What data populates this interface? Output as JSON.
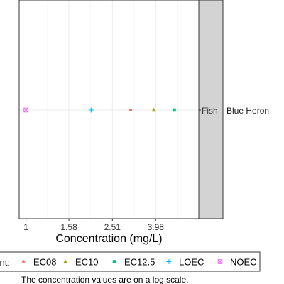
{
  "chart_data": {
    "type": "scatter",
    "xlabel": "Concentration (mg/L)",
    "x_scale": "log",
    "x_ticks": [
      1,
      1.58,
      2.51,
      3.98
    ],
    "x_tick_labels": [
      "1",
      "1.58",
      "2.51",
      "3.98"
    ],
    "xlim": [
      0.93,
      6.3
    ],
    "grid": true,
    "y_categories": [
      "Fish"
    ],
    "facet_labels": [
      "Blue Heron"
    ],
    "legend_title": "Endpoint:",
    "legend_placement": "bottom",
    "series": [
      {
        "name": "EC08",
        "marker": "circle",
        "color": "#F8766D",
        "points": [
          {
            "x": 3.05,
            "y": "Fish"
          }
        ]
      },
      {
        "name": "EC10",
        "marker": "triangle",
        "color": "#A3A500",
        "points": [
          {
            "x": 3.9,
            "y": "Fish"
          }
        ]
      },
      {
        "name": "EC12.5",
        "marker": "square",
        "color": "#00BF7D",
        "points": [
          {
            "x": 4.85,
            "y": "Fish"
          }
        ]
      },
      {
        "name": "LOEC",
        "marker": "plus",
        "color": "#00B0F6",
        "points": [
          {
            "x": 2.0,
            "y": "Fish"
          }
        ]
      },
      {
        "name": "NOEC",
        "marker": "square-cross",
        "color": "#E76BF3",
        "points": [
          {
            "x": 1.0,
            "y": "Fish"
          }
        ]
      }
    ],
    "caption": "The concentration values are on a log scale."
  }
}
